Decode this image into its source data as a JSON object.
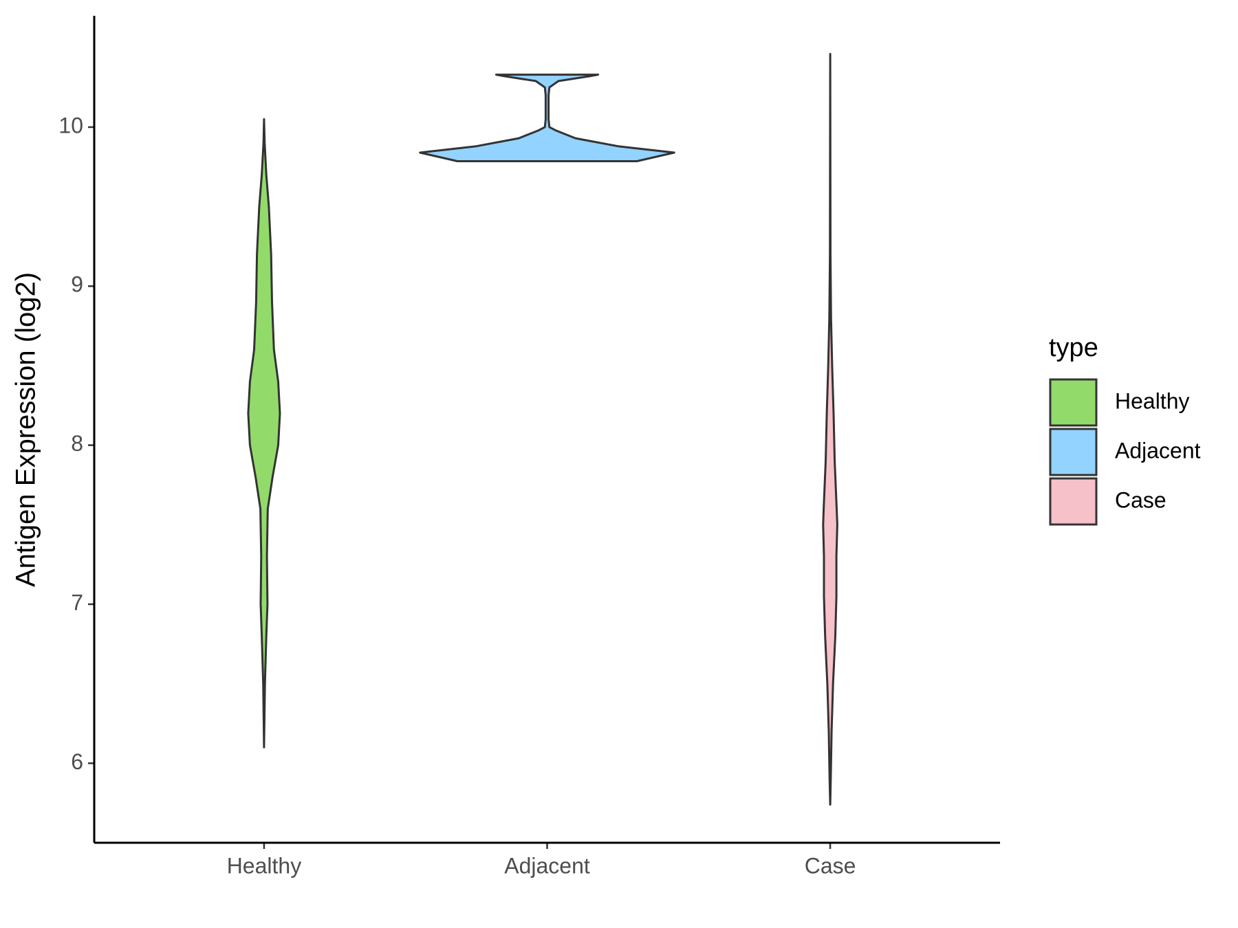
{
  "chart_data": {
    "type": "violin",
    "y_label": "Antigen Expression (log2)",
    "categories": [
      "Healthy",
      "Adjacent",
      "Case"
    ],
    "ylim": [
      5.5,
      10.7
    ],
    "yticks": [
      6,
      7,
      8,
      9,
      10
    ],
    "legend_title": "type",
    "legend_position": "right",
    "series": [
      {
        "name": "Healthy",
        "color": "#92db6a",
        "y": [
          6.1,
          6.5,
          6.8,
          7.0,
          7.3,
          7.6,
          7.8,
          8.0,
          8.2,
          8.4,
          8.6,
          8.9,
          9.2,
          9.5,
          9.7,
          9.9,
          10.05
        ],
        "density": [
          0.0,
          0.003,
          0.008,
          0.012,
          0.01,
          0.013,
          0.03,
          0.05,
          0.056,
          0.05,
          0.035,
          0.028,
          0.025,
          0.017,
          0.008,
          0.002,
          0.0
        ]
      },
      {
        "name": "Adjacent",
        "color": "#93d3ff",
        "y": [
          9.786,
          9.84,
          9.88,
          9.93,
          9.98,
          10.0,
          10.05,
          10.2,
          10.25,
          10.29,
          10.32,
          10.33
        ],
        "density": [
          0.317,
          0.449,
          0.25,
          0.1,
          0.03,
          0.008,
          0.005,
          0.005,
          0.008,
          0.04,
          0.15,
          0.18
        ]
      },
      {
        "name": "Case",
        "color": "#f7c1ca",
        "y": [
          5.74,
          5.9,
          6.2,
          6.5,
          6.8,
          7.05,
          7.3,
          7.5,
          7.6,
          7.9,
          8.2,
          8.5,
          8.8,
          9.2,
          10.46
        ],
        "density": [
          0.0,
          0.002,
          0.005,
          0.01,
          0.018,
          0.022,
          0.022,
          0.025,
          0.023,
          0.016,
          0.012,
          0.007,
          0.003,
          0.001,
          0.0
        ]
      }
    ]
  }
}
